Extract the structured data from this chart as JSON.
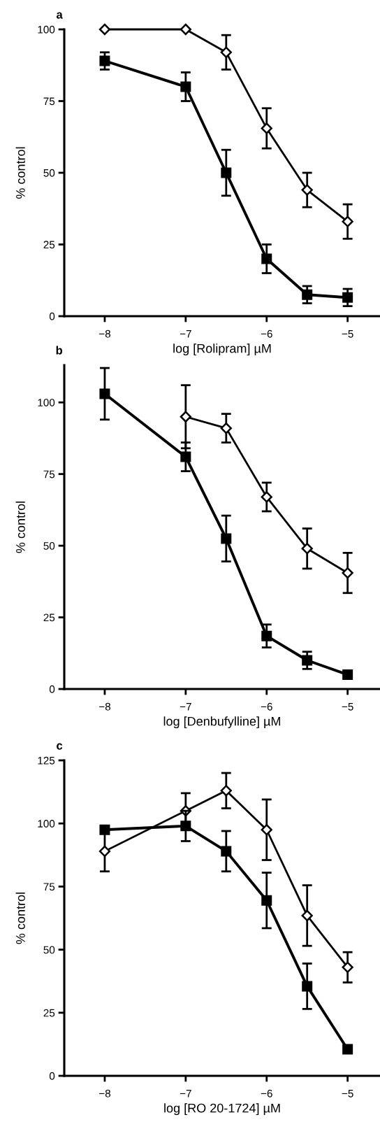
{
  "chart_data": [
    {
      "type": "line",
      "title": "a",
      "xlabel": "log [Rolipram] µM",
      "ylabel": "% control",
      "x": [
        -8,
        -7,
        -6.5,
        -6,
        -5.5,
        -5
      ],
      "xlim": [
        -8.5,
        -4.6
      ],
      "xticks": [
        -8,
        -7,
        -6,
        -5
      ],
      "ylim": [
        0,
        100
      ],
      "yticks": [
        0,
        25,
        50,
        75,
        100
      ],
      "grid": false,
      "series": [
        {
          "color": "#000000",
          "marker": "diamond",
          "values": [
            100,
            100,
            92,
            65.5,
            44,
            33
          ],
          "errors": [
            null,
            null,
            6,
            7,
            6,
            6
          ]
        },
        {
          "color": "#000000",
          "marker": "square",
          "values": [
            89,
            80,
            50,
            20,
            7.5,
            6.5
          ],
          "errors": [
            3,
            5,
            8,
            5,
            3,
            3
          ]
        }
      ]
    },
    {
      "type": "line",
      "title": "b",
      "xlabel": "log [Denbufylline] µM",
      "ylabel": "% control",
      "x": [
        -8,
        -7,
        -6.5,
        -6,
        -5.5,
        -5
      ],
      "xlim": [
        -8.5,
        -4.6
      ],
      "xticks": [
        -8,
        -7,
        -6,
        -5
      ],
      "ylim": [
        0,
        113
      ],
      "yticks": [
        0,
        25,
        50,
        75,
        100
      ],
      "grid": false,
      "series": [
        {
          "color": "#000000",
          "marker": "diamond",
          "values": [
            null,
            95,
            91,
            67,
            49,
            40.5
          ],
          "errors": [
            null,
            11,
            5,
            5,
            7,
            7
          ]
        },
        {
          "color": "#000000",
          "marker": "square",
          "values": [
            103,
            81,
            52.5,
            18.5,
            10,
            5
          ],
          "errors": [
            9,
            5,
            8,
            4,
            3,
            null
          ]
        }
      ]
    },
    {
      "type": "line",
      "title": "c",
      "xlabel": "log [RO 20-1724] µM",
      "ylabel": "% control",
      "x": [
        -8,
        -7,
        -6.5,
        -6,
        -5.5,
        -5
      ],
      "xlim": [
        -8.5,
        -4.6
      ],
      "xticks": [
        -8,
        -7,
        -6,
        -5
      ],
      "ylim": [
        0,
        125
      ],
      "yticks": [
        0,
        25,
        50,
        75,
        100,
        125
      ],
      "grid": false,
      "series": [
        {
          "color": "#000000",
          "marker": "diamond",
          "values": [
            89,
            105,
            113,
            97.5,
            63.5,
            43
          ],
          "errors": [
            8,
            7,
            7,
            12,
            12,
            6
          ]
        },
        {
          "color": "#000000",
          "marker": "square",
          "values": [
            97.5,
            99,
            89,
            69.5,
            35.5,
            10.5
          ],
          "errors": [
            null,
            6,
            8,
            11,
            9,
            null
          ]
        }
      ]
    }
  ]
}
